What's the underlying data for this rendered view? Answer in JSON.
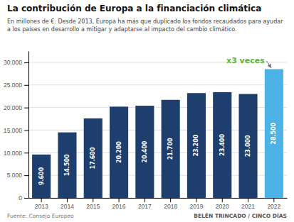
{
  "chart_data": {
    "type": "bar",
    "title": "La contribución de Europa a la financiación climática",
    "subtitle": "En millones de €. Desde 2013, Europa ha más que duplicado los fondos recaudados para ayudar\na los países en desarrollo a mitigar y adaptarse al impacto del cambio climático.",
    "categories": [
      "2013",
      "2014",
      "2015",
      "2016",
      "2017",
      "2018",
      "2019",
      "2020",
      "2021",
      "2022"
    ],
    "values": [
      9600,
      14500,
      17600,
      20200,
      20400,
      21700,
      23200,
      23400,
      23000,
      28500
    ],
    "value_labels": [
      "9.600",
      "14.500",
      "17.600",
      "20.200",
      "20.400",
      "21.700",
      "23.200",
      "23.400",
      "23.000",
      "28.500"
    ],
    "data_labels": true,
    "colors": [
      "#1e3f6e",
      "#1e3f6e",
      "#1e3f6e",
      "#1e3f6e",
      "#1e3f6e",
      "#1e3f6e",
      "#1e3f6e",
      "#1e3f6e",
      "#1e3f6e",
      "#4db3e6"
    ],
    "ylim": [
      0,
      32500
    ],
    "yticks": [
      0,
      {
        "value": 5000,
        "label": "5.000"
      },
      {
        "value": 10000,
        "label": "10.000"
      },
      {
        "value": 15000,
        "label": "15.000"
      },
      {
        "value": 20000,
        "label": "20.000"
      },
      {
        "value": 25000,
        "label": "25.000"
      },
      {
        "value": 30000,
        "label": "30.000"
      }
    ],
    "grid": true,
    "annotations": [
      {
        "text": "x3 veces",
        "color": "#5ab535"
      }
    ],
    "source": "Fuente: Consejo Europeo",
    "credit": "BELÉN TRINCADO / CINCO DÍAS"
  }
}
